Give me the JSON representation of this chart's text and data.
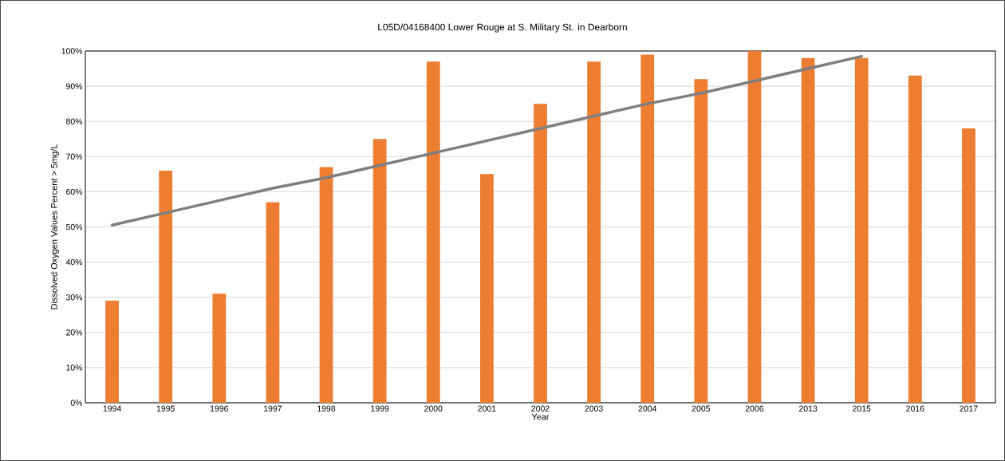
{
  "chart_data": {
    "type": "bar",
    "title": "L05D/04168400 Lower Rouge at S. Military St. in Dearborn",
    "xlabel": "Year",
    "ylabel": "Dissolved Oxygen Values Percent > 5mg/L",
    "categories": [
      "1994",
      "1995",
      "1996",
      "1997",
      "1998",
      "1999",
      "2000",
      "2001",
      "2002",
      "2003",
      "2004",
      "2005",
      "2006",
      "2013",
      "2015",
      "2016",
      "2017"
    ],
    "series": [
      {
        "color": "#ed7d31",
        "values": [
          29,
          66,
          31,
          57,
          67,
          75,
          97,
          65,
          85,
          97,
          99,
          92,
          100,
          98,
          98,
          93,
          78
        ]
      },
      {
        "type": "line",
        "color": "#7f7f7f",
        "values": [
          50.5,
          54,
          57.5,
          61,
          64,
          67.5,
          71,
          74.5,
          78,
          81.5,
          85,
          88,
          91.5,
          95,
          98.5,
          null,
          null
        ]
      }
    ],
    "ylim": [
      0,
      100
    ],
    "yticks": [
      {
        "value": 0,
        "label": "0%"
      },
      {
        "value": 10,
        "label": "10%"
      },
      {
        "value": 20,
        "label": "20%"
      },
      {
        "value": 30,
        "label": "30%"
      },
      {
        "value": 40,
        "label": "40%"
      },
      {
        "value": 50,
        "label": "50%"
      },
      {
        "value": 60,
        "label": "60%"
      },
      {
        "value": 70,
        "label": "70%"
      },
      {
        "value": 80,
        "label": "80%"
      },
      {
        "value": 90,
        "label": "90%"
      },
      {
        "value": 100,
        "label": "100%"
      }
    ],
    "grid": "y",
    "marker": "none",
    "line_style": "solid"
  }
}
